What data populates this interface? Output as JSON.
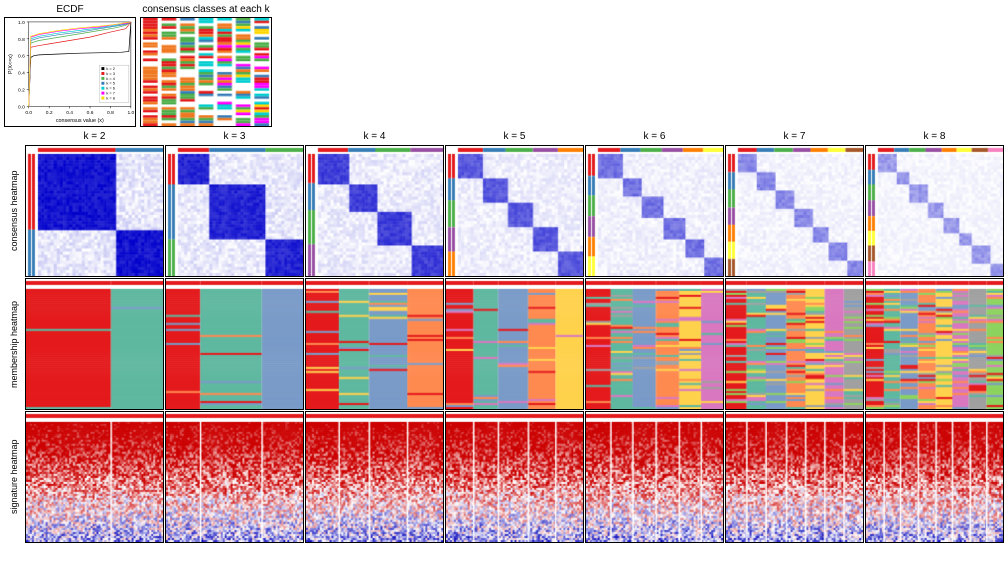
{
  "top_titles": {
    "ecdf": "ECDF",
    "consensus_classes": "consensus classes at each k"
  },
  "k_values": [
    "k = 2",
    "k = 3",
    "k = 4",
    "k = 5",
    "k = 6",
    "k = 7",
    "k = 8"
  ],
  "row_labels": [
    "consensus heatmap",
    "membership heatmap",
    "signature heatmap"
  ],
  "ecdf": {
    "xlabel": "consensus value (x)",
    "ylabel": "P(X<=x)",
    "xlim": [
      0,
      1
    ],
    "ylim": [
      0,
      1
    ],
    "xticks": [
      0.0,
      0.2,
      0.4,
      0.6,
      0.8,
      1.0
    ],
    "yticks": [
      0.0,
      0.2,
      0.4,
      0.6,
      0.8,
      1.0
    ],
    "colors": [
      "#000000",
      "#e41a1c",
      "#4daf4a",
      "#377eb8",
      "#00ced1",
      "#ff00ff",
      "#ffd700"
    ],
    "legend": [
      "k = 2",
      "k = 3",
      "k = 4",
      "k = 5",
      "k = 6",
      "k = 7",
      "k = 8"
    ],
    "curves": [
      [
        [
          0,
          0
        ],
        [
          0.02,
          0.58
        ],
        [
          0.05,
          0.6
        ],
        [
          0.1,
          0.61
        ],
        [
          0.3,
          0.62
        ],
        [
          0.5,
          0.63
        ],
        [
          0.9,
          0.64
        ],
        [
          0.98,
          0.65
        ],
        [
          1,
          1
        ]
      ],
      [
        [
          0,
          0
        ],
        [
          0.02,
          0.7
        ],
        [
          0.1,
          0.72
        ],
        [
          0.2,
          0.74
        ],
        [
          0.4,
          0.78
        ],
        [
          0.6,
          0.82
        ],
        [
          0.8,
          0.88
        ],
        [
          0.95,
          0.92
        ],
        [
          1,
          1
        ]
      ],
      [
        [
          0,
          0
        ],
        [
          0.02,
          0.75
        ],
        [
          0.1,
          0.78
        ],
        [
          0.3,
          0.82
        ],
        [
          0.5,
          0.86
        ],
        [
          0.7,
          0.9
        ],
        [
          0.85,
          0.93
        ],
        [
          0.95,
          0.96
        ],
        [
          1,
          1
        ]
      ],
      [
        [
          0,
          0
        ],
        [
          0.02,
          0.78
        ],
        [
          0.1,
          0.81
        ],
        [
          0.3,
          0.85
        ],
        [
          0.5,
          0.88
        ],
        [
          0.7,
          0.92
        ],
        [
          0.85,
          0.95
        ],
        [
          0.95,
          0.97
        ],
        [
          1,
          1
        ]
      ],
      [
        [
          0,
          0
        ],
        [
          0.02,
          0.8
        ],
        [
          0.1,
          0.83
        ],
        [
          0.3,
          0.87
        ],
        [
          0.5,
          0.9
        ],
        [
          0.7,
          0.93
        ],
        [
          0.85,
          0.96
        ],
        [
          0.95,
          0.98
        ],
        [
          1,
          1
        ]
      ],
      [
        [
          0,
          0
        ],
        [
          0.02,
          0.82
        ],
        [
          0.1,
          0.85
        ],
        [
          0.3,
          0.89
        ],
        [
          0.5,
          0.92
        ],
        [
          0.7,
          0.94
        ],
        [
          0.85,
          0.97
        ],
        [
          0.95,
          0.98
        ],
        [
          1,
          1
        ]
      ],
      [
        [
          0,
          0
        ],
        [
          0.02,
          0.83
        ],
        [
          0.1,
          0.86
        ],
        [
          0.3,
          0.9
        ],
        [
          0.5,
          0.93
        ],
        [
          0.7,
          0.95
        ],
        [
          0.85,
          0.97
        ],
        [
          0.95,
          0.99
        ],
        [
          1,
          1
        ]
      ]
    ]
  },
  "consensus_classes": {
    "cols": 7,
    "rows": 40,
    "palette": [
      "#e41a1c",
      "#f07820",
      "#4daf4a",
      "#377eb8",
      "#00ced1",
      "#ff00ff",
      "#ffd700",
      "#ffffff"
    ]
  },
  "consensus_heatmap": {
    "palette_low": "#ffffff",
    "palette_high": "#0000cc",
    "annot_colors": [
      "#e41a1c",
      "#377eb8",
      "#4daf4a",
      "#984ea3",
      "#ff7f00",
      "#ffff33",
      "#a65628",
      "#f781bf"
    ],
    "blocks": [
      [
        0.62,
        0.38
      ],
      [
        0.25,
        0.45,
        0.3
      ],
      [
        0.24,
        0.22,
        0.28,
        0.26
      ],
      [
        0.2,
        0.18,
        0.22,
        0.2,
        0.2
      ],
      [
        0.18,
        0.16,
        0.17,
        0.17,
        0.16,
        0.16
      ],
      [
        0.15,
        0.14,
        0.15,
        0.14,
        0.14,
        0.14,
        0.14
      ],
      [
        0.13,
        0.12,
        0.13,
        0.13,
        0.12,
        0.12,
        0.13,
        0.12
      ]
    ],
    "fade": [
      1.0,
      0.92,
      0.8,
      0.68,
      0.56,
      0.46,
      0.38
    ]
  },
  "membership_heatmap": {
    "palette": [
      "#e41a1c",
      "#5fb8a0",
      "#7a9bc8",
      "#ff8a50",
      "#ffd24d",
      "#d978c0",
      "#a0a0a0",
      "#8dd35f"
    ],
    "noise": [
      0.02,
      0.06,
      0.1,
      0.16,
      0.26,
      0.34,
      0.4
    ]
  },
  "signature_heatmap": {
    "low": "#0000bb",
    "mid": "#ffffff",
    "high": "#cc0000",
    "separators": [
      [
        0.62
      ],
      [
        0.25,
        0.7
      ],
      [
        0.24,
        0.46,
        0.74
      ],
      [
        0.2,
        0.38,
        0.6,
        0.8
      ],
      [
        0.18,
        0.34,
        0.51,
        0.68,
        0.84
      ],
      [
        0.15,
        0.29,
        0.44,
        0.58,
        0.72,
        0.86
      ],
      [
        0.13,
        0.25,
        0.38,
        0.51,
        0.63,
        0.76,
        0.88
      ]
    ]
  }
}
